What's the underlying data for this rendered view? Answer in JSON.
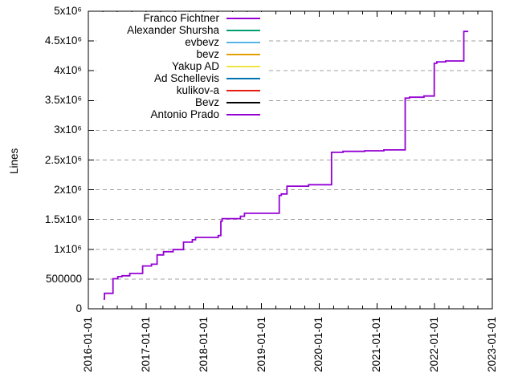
{
  "chart_data": {
    "type": "line",
    "style": "step-after",
    "ylabel": "Lines",
    "x_axis": {
      "type": "date",
      "range": [
        "2016-01-01",
        "2023-01-01"
      ],
      "tick_labels": [
        "2016-01-01",
        "2017-01-01",
        "2018-01-01",
        "2019-01-01",
        "2020-01-01",
        "2021-01-01",
        "2022-01-01",
        "2023-01-01"
      ],
      "tick_label_rotation_deg": -90,
      "minor_tick_interval_months": 3
    },
    "y_axis": {
      "min": 0,
      "max": 5000000,
      "tick_values": [
        0,
        500000,
        1000000,
        1500000,
        2000000,
        2500000,
        3000000,
        3500000,
        4000000,
        4500000,
        5000000
      ],
      "tick_labels": [
        "0",
        "500000",
        "1x10⁶",
        "1.5x10⁶",
        "2x10⁶",
        "2.5x10⁶",
        "3x10⁶",
        "3.5x10⁶",
        "4x10⁶",
        "4.5x10⁶",
        "5x10⁶"
      ]
    },
    "grid": {
      "horizontal": true,
      "vertical": false,
      "style": "dashed",
      "color": "#a0a0a0"
    },
    "legend": {
      "position": "top-left-inside",
      "opaque": true
    },
    "series": [
      {
        "name": "Franco Fichtner",
        "color": "#9400d3",
        "visible": true,
        "points": [
          [
            "2016-04-05",
            165000
          ],
          [
            "2016-04-12",
            260000
          ],
          [
            "2016-06-05",
            505000
          ],
          [
            "2016-07-05",
            540000
          ],
          [
            "2016-08-01",
            555000
          ],
          [
            "2016-09-20",
            595000
          ],
          [
            "2016-12-10",
            720000
          ],
          [
            "2017-02-05",
            750000
          ],
          [
            "2017-03-10",
            905000
          ],
          [
            "2017-04-20",
            960000
          ],
          [
            "2017-06-20",
            995000
          ],
          [
            "2017-08-25",
            1120000
          ],
          [
            "2017-10-20",
            1160000
          ],
          [
            "2017-11-10",
            1200000
          ],
          [
            "2018-04-01",
            1230000
          ],
          [
            "2018-04-18",
            1470000
          ],
          [
            "2018-04-26",
            1515000
          ],
          [
            "2018-08-20",
            1555000
          ],
          [
            "2018-09-15",
            1605000
          ],
          [
            "2019-04-22",
            1905000
          ],
          [
            "2019-05-05",
            1930000
          ],
          [
            "2019-06-10",
            2060000
          ],
          [
            "2019-10-25",
            2085000
          ],
          [
            "2020-03-18",
            2630000
          ],
          [
            "2020-05-30",
            2645000
          ],
          [
            "2020-10-15",
            2655000
          ],
          [
            "2021-02-15",
            2670000
          ],
          [
            "2021-06-28",
            3540000
          ],
          [
            "2021-07-25",
            3555000
          ],
          [
            "2021-10-25",
            3575000
          ],
          [
            "2021-12-29",
            4125000
          ],
          [
            "2022-01-15",
            4150000
          ],
          [
            "2022-03-10",
            4165000
          ],
          [
            "2022-07-03",
            4660000
          ],
          [
            "2022-08-01",
            4660000
          ]
        ]
      },
      {
        "name": "Alexander Shursha",
        "color": "#009e73",
        "visible": false,
        "points": []
      },
      {
        "name": "evbevz",
        "color": "#56b4e9",
        "visible": false,
        "points": []
      },
      {
        "name": "bevz",
        "color": "#e69f00",
        "visible": false,
        "points": []
      },
      {
        "name": "Yakup AD",
        "color": "#f0e442",
        "visible": false,
        "points": []
      },
      {
        "name": "Ad Schellevis",
        "color": "#0072b2",
        "visible": false,
        "points": []
      },
      {
        "name": "kulikov-a",
        "color": "#e51e10",
        "visible": false,
        "points": []
      },
      {
        "name": "Bevz",
        "color": "#000000",
        "visible": false,
        "points": []
      },
      {
        "name": "Antonio Prado",
        "color": "#9400d3",
        "visible": false,
        "points": []
      }
    ]
  }
}
